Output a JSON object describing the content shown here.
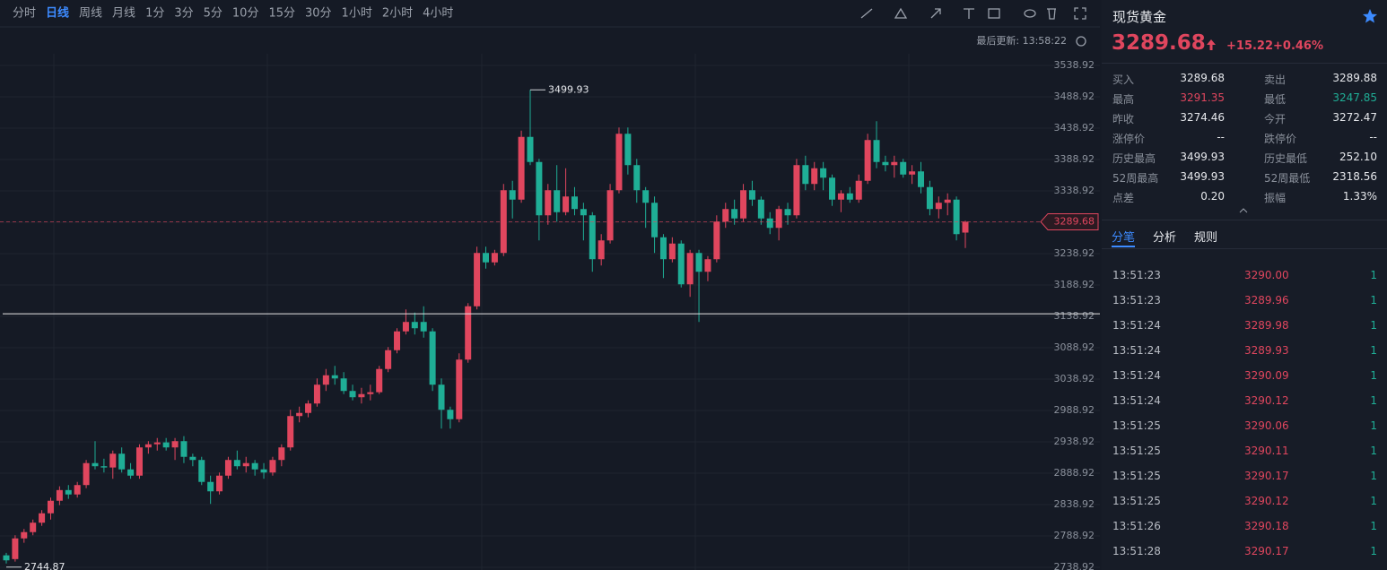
{
  "toolbar": {
    "periods": [
      "分时",
      "日线",
      "周线",
      "月线",
      "1分",
      "3分",
      "5分",
      "10分",
      "15分",
      "30分",
      "1小时",
      "2小时",
      "4小时"
    ],
    "active_period": 1
  },
  "last_update": "最后更新: 13:58:22",
  "chart_data": {
    "type": "candlestick",
    "ylim": [
      2734.6,
      3557.5
    ],
    "yticks": [
      3538.92,
      3488.92,
      3438.92,
      3388.92,
      3338.92,
      3288.92,
      3238.92,
      3188.92,
      3138.92,
      3088.92,
      3038.92,
      2988.92,
      2938.92,
      2888.92,
      2838.92,
      2788.92,
      2738.92
    ],
    "grid": true,
    "up_color": "#e0465e",
    "down_color": "#1fae96",
    "hline": 3143,
    "high_index": 59,
    "low_index": 0,
    "candles": [
      {
        "open": 2758,
        "high": 2762,
        "low": 2744.87,
        "close": 2750
      },
      {
        "open": 2752,
        "high": 2790,
        "low": 2748,
        "close": 2785
      },
      {
        "open": 2785,
        "high": 2800,
        "low": 2778,
        "close": 2795
      },
      {
        "open": 2795,
        "high": 2815,
        "low": 2790,
        "close": 2810
      },
      {
        "open": 2810,
        "high": 2830,
        "low": 2805,
        "close": 2825
      },
      {
        "open": 2825,
        "high": 2850,
        "low": 2815,
        "close": 2845
      },
      {
        "open": 2845,
        "high": 2868,
        "low": 2838,
        "close": 2862
      },
      {
        "open": 2862,
        "high": 2870,
        "low": 2848,
        "close": 2855
      },
      {
        "open": 2855,
        "high": 2875,
        "low": 2850,
        "close": 2870
      },
      {
        "open": 2870,
        "high": 2910,
        "low": 2865,
        "close": 2905
      },
      {
        "open": 2905,
        "high": 2940,
        "low": 2895,
        "close": 2900
      },
      {
        "open": 2900,
        "high": 2912,
        "low": 2890,
        "close": 2898
      },
      {
        "open": 2898,
        "high": 2925,
        "low": 2880,
        "close": 2920
      },
      {
        "open": 2920,
        "high": 2930,
        "low": 2890,
        "close": 2895
      },
      {
        "open": 2895,
        "high": 2905,
        "low": 2880,
        "close": 2885
      },
      {
        "open": 2885,
        "high": 2935,
        "low": 2880,
        "close": 2930
      },
      {
        "open": 2930,
        "high": 2940,
        "low": 2920,
        "close": 2935
      },
      {
        "open": 2935,
        "high": 2945,
        "low": 2925,
        "close": 2938
      },
      {
        "open": 2938,
        "high": 2945,
        "low": 2925,
        "close": 2930
      },
      {
        "open": 2930,
        "high": 2945,
        "low": 2910,
        "close": 2940
      },
      {
        "open": 2940,
        "high": 2948,
        "low": 2905,
        "close": 2915
      },
      {
        "open": 2915,
        "high": 2920,
        "low": 2900,
        "close": 2910
      },
      {
        "open": 2910,
        "high": 2915,
        "low": 2870,
        "close": 2875
      },
      {
        "open": 2875,
        "high": 2885,
        "low": 2840,
        "close": 2860
      },
      {
        "open": 2860,
        "high": 2890,
        "low": 2855,
        "close": 2885
      },
      {
        "open": 2885,
        "high": 2915,
        "low": 2880,
        "close": 2910
      },
      {
        "open": 2910,
        "high": 2925,
        "low": 2895,
        "close": 2900
      },
      {
        "open": 2900,
        "high": 2915,
        "low": 2890,
        "close": 2905
      },
      {
        "open": 2905,
        "high": 2910,
        "low": 2885,
        "close": 2895
      },
      {
        "open": 2895,
        "high": 2905,
        "low": 2880,
        "close": 2890
      },
      {
        "open": 2890,
        "high": 2915,
        "low": 2885,
        "close": 2910
      },
      {
        "open": 2910,
        "high": 2935,
        "low": 2900,
        "close": 2930
      },
      {
        "open": 2930,
        "high": 2990,
        "low": 2925,
        "close": 2980
      },
      {
        "open": 2980,
        "high": 2995,
        "low": 2970,
        "close": 2985
      },
      {
        "open": 2985,
        "high": 3005,
        "low": 2978,
        "close": 3000
      },
      {
        "open": 3000,
        "high": 3040,
        "low": 2995,
        "close": 3030
      },
      {
        "open": 3030,
        "high": 3055,
        "low": 3020,
        "close": 3045
      },
      {
        "open": 3045,
        "high": 3060,
        "low": 3030,
        "close": 3040
      },
      {
        "open": 3040,
        "high": 3050,
        "low": 3015,
        "close": 3020
      },
      {
        "open": 3020,
        "high": 3030,
        "low": 3005,
        "close": 3010
      },
      {
        "open": 3010,
        "high": 3025,
        "low": 3000,
        "close": 3015
      },
      {
        "open": 3015,
        "high": 3030,
        "low": 3005,
        "close": 3018
      },
      {
        "open": 3018,
        "high": 3060,
        "low": 3015,
        "close": 3055
      },
      {
        "open": 3055,
        "high": 3090,
        "low": 3050,
        "close": 3085
      },
      {
        "open": 3085,
        "high": 3120,
        "low": 3080,
        "close": 3115
      },
      {
        "open": 3115,
        "high": 3150,
        "low": 3110,
        "close": 3130
      },
      {
        "open": 3130,
        "high": 3145,
        "low": 3110,
        "close": 3120
      },
      {
        "open": 3130,
        "high": 3155,
        "low": 3105,
        "close": 3115
      },
      {
        "open": 3115,
        "high": 3120,
        "low": 3020,
        "close": 3030
      },
      {
        "open": 3030,
        "high": 3040,
        "low": 2960,
        "close": 2990
      },
      {
        "open": 2990,
        "high": 2995,
        "low": 2960,
        "close": 2975
      },
      {
        "open": 2975,
        "high": 3080,
        "low": 2970,
        "close": 3070
      },
      {
        "open": 3070,
        "high": 3160,
        "low": 3065,
        "close": 3155
      },
      {
        "open": 3155,
        "high": 3250,
        "low": 3150,
        "close": 3240
      },
      {
        "open": 3240,
        "high": 3250,
        "low": 3215,
        "close": 3225
      },
      {
        "open": 3225,
        "high": 3245,
        "low": 3220,
        "close": 3240
      },
      {
        "open": 3240,
        "high": 3350,
        "low": 3235,
        "close": 3340
      },
      {
        "open": 3340,
        "high": 3355,
        "low": 3295,
        "close": 3325
      },
      {
        "open": 3325,
        "high": 3435,
        "low": 3320,
        "close": 3425
      },
      {
        "open": 3425,
        "high": 3499.93,
        "low": 3380,
        "close": 3385
      },
      {
        "open": 3385,
        "high": 3390,
        "low": 3260,
        "close": 3300
      },
      {
        "open": 3300,
        "high": 3350,
        "low": 3285,
        "close": 3340
      },
      {
        "open": 3340,
        "high": 3380,
        "low": 3290,
        "close": 3305
      },
      {
        "open": 3305,
        "high": 3375,
        "low": 3300,
        "close": 3330
      },
      {
        "open": 3330,
        "high": 3345,
        "low": 3300,
        "close": 3310
      },
      {
        "open": 3310,
        "high": 3320,
        "low": 3260,
        "close": 3300
      },
      {
        "open": 3300,
        "high": 3305,
        "low": 3210,
        "close": 3230
      },
      {
        "open": 3230,
        "high": 3270,
        "low": 3220,
        "close": 3260
      },
      {
        "open": 3260,
        "high": 3350,
        "low": 3255,
        "close": 3340
      },
      {
        "open": 3340,
        "high": 3440,
        "low": 3335,
        "close": 3430
      },
      {
        "open": 3430,
        "high": 3440,
        "low": 3365,
        "close": 3380
      },
      {
        "open": 3380,
        "high": 3390,
        "low": 3320,
        "close": 3340
      },
      {
        "open": 3340,
        "high": 3345,
        "low": 3280,
        "close": 3320
      },
      {
        "open": 3320,
        "high": 3330,
        "low": 3240,
        "close": 3265
      },
      {
        "open": 3265,
        "high": 3270,
        "low": 3200,
        "close": 3230
      },
      {
        "open": 3230,
        "high": 3265,
        "low": 3225,
        "close": 3255
      },
      {
        "open": 3255,
        "high": 3260,
        "low": 3185,
        "close": 3190
      },
      {
        "open": 3190,
        "high": 3245,
        "low": 3170,
        "close": 3240
      },
      {
        "open": 3240,
        "high": 3245,
        "low": 3130,
        "close": 3210
      },
      {
        "open": 3210,
        "high": 3235,
        "low": 3195,
        "close": 3230
      },
      {
        "open": 3230,
        "high": 3300,
        "low": 3225,
        "close": 3290
      },
      {
        "open": 3290,
        "high": 3320,
        "low": 3280,
        "close": 3310
      },
      {
        "open": 3310,
        "high": 3325,
        "low": 3285,
        "close": 3295
      },
      {
        "open": 3295,
        "high": 3350,
        "low": 3290,
        "close": 3340
      },
      {
        "open": 3340,
        "high": 3355,
        "low": 3315,
        "close": 3325
      },
      {
        "open": 3325,
        "high": 3330,
        "low": 3285,
        "close": 3295
      },
      {
        "open": 3295,
        "high": 3305,
        "low": 3270,
        "close": 3280
      },
      {
        "open": 3280,
        "high": 3315,
        "low": 3260,
        "close": 3310
      },
      {
        "open": 3310,
        "high": 3320,
        "low": 3285,
        "close": 3300
      },
      {
        "open": 3300,
        "high": 3390,
        "low": 3295,
        "close": 3380
      },
      {
        "open": 3380,
        "high": 3395,
        "low": 3340,
        "close": 3350
      },
      {
        "open": 3350,
        "high": 3385,
        "low": 3340,
        "close": 3375
      },
      {
        "open": 3375,
        "high": 3385,
        "low": 3340,
        "close": 3360
      },
      {
        "open": 3360,
        "high": 3365,
        "low": 3315,
        "close": 3325
      },
      {
        "open": 3325,
        "high": 3340,
        "low": 3305,
        "close": 3335
      },
      {
        "open": 3335,
        "high": 3345,
        "low": 3320,
        "close": 3325
      },
      {
        "open": 3325,
        "high": 3365,
        "low": 3320,
        "close": 3355
      },
      {
        "open": 3355,
        "high": 3430,
        "low": 3350,
        "close": 3420
      },
      {
        "open": 3420,
        "high": 3450,
        "low": 3375,
        "close": 3385
      },
      {
        "open": 3385,
        "high": 3395,
        "low": 3370,
        "close": 3380
      },
      {
        "open": 3380,
        "high": 3395,
        "low": 3360,
        "close": 3385
      },
      {
        "open": 3385,
        "high": 3390,
        "low": 3360,
        "close": 3365
      },
      {
        "open": 3365,
        "high": 3380,
        "low": 3350,
        "close": 3370
      },
      {
        "open": 3370,
        "high": 3385,
        "low": 3335,
        "close": 3345
      },
      {
        "open": 3345,
        "high": 3355,
        "low": 3300,
        "close": 3310
      },
      {
        "open": 3310,
        "high": 3330,
        "low": 3295,
        "close": 3320
      },
      {
        "open": 3320,
        "high": 3335,
        "low": 3300,
        "close": 3325
      },
      {
        "open": 3325,
        "high": 3330,
        "low": 3260,
        "close": 3270
      },
      {
        "open": 3272.47,
        "high": 3291.35,
        "low": 3247.85,
        "close": 3289.68
      }
    ]
  },
  "quote": {
    "name": "现货黄金",
    "price": "3289.68",
    "change": "+15.22",
    "change_pct": "+0.46%",
    "stats": [
      {
        "label": "买入",
        "value": "3289.68"
      },
      {
        "label": "卖出",
        "value": "3289.88"
      },
      {
        "label": "最高",
        "value": "3291.35",
        "color": "#e0465e"
      },
      {
        "label": "最低",
        "value": "3247.85",
        "color": "#1fae96"
      },
      {
        "label": "昨收",
        "value": "3274.46"
      },
      {
        "label": "今开",
        "value": "3272.47"
      },
      {
        "label": "涨停价",
        "value": "--"
      },
      {
        "label": "跌停价",
        "value": "--"
      },
      {
        "label": "历史最高",
        "value": "3499.93"
      },
      {
        "label": "历史最低",
        "value": "252.10"
      },
      {
        "label": "52周最高",
        "value": "3499.93"
      },
      {
        "label": "52周最低",
        "value": "2318.56"
      },
      {
        "label": "点差",
        "value": "0.20"
      },
      {
        "label": "振幅",
        "value": "1.33%"
      }
    ],
    "tabs": [
      "分笔",
      "分析",
      "规则"
    ],
    "active_tab": 0,
    "trades": [
      [
        "13:51:23",
        "3290.00",
        "1"
      ],
      [
        "13:51:23",
        "3289.96",
        "1"
      ],
      [
        "13:51:24",
        "3289.98",
        "1"
      ],
      [
        "13:51:24",
        "3289.93",
        "1"
      ],
      [
        "13:51:24",
        "3290.09",
        "1"
      ],
      [
        "13:51:24",
        "3290.12",
        "1"
      ],
      [
        "13:51:25",
        "3290.06",
        "1"
      ],
      [
        "13:51:25",
        "3290.11",
        "1"
      ],
      [
        "13:51:25",
        "3290.17",
        "1"
      ],
      [
        "13:51:25",
        "3290.12",
        "1"
      ],
      [
        "13:51:26",
        "3290.18",
        "1"
      ],
      [
        "13:51:28",
        "3290.17",
        "1"
      ]
    ]
  }
}
